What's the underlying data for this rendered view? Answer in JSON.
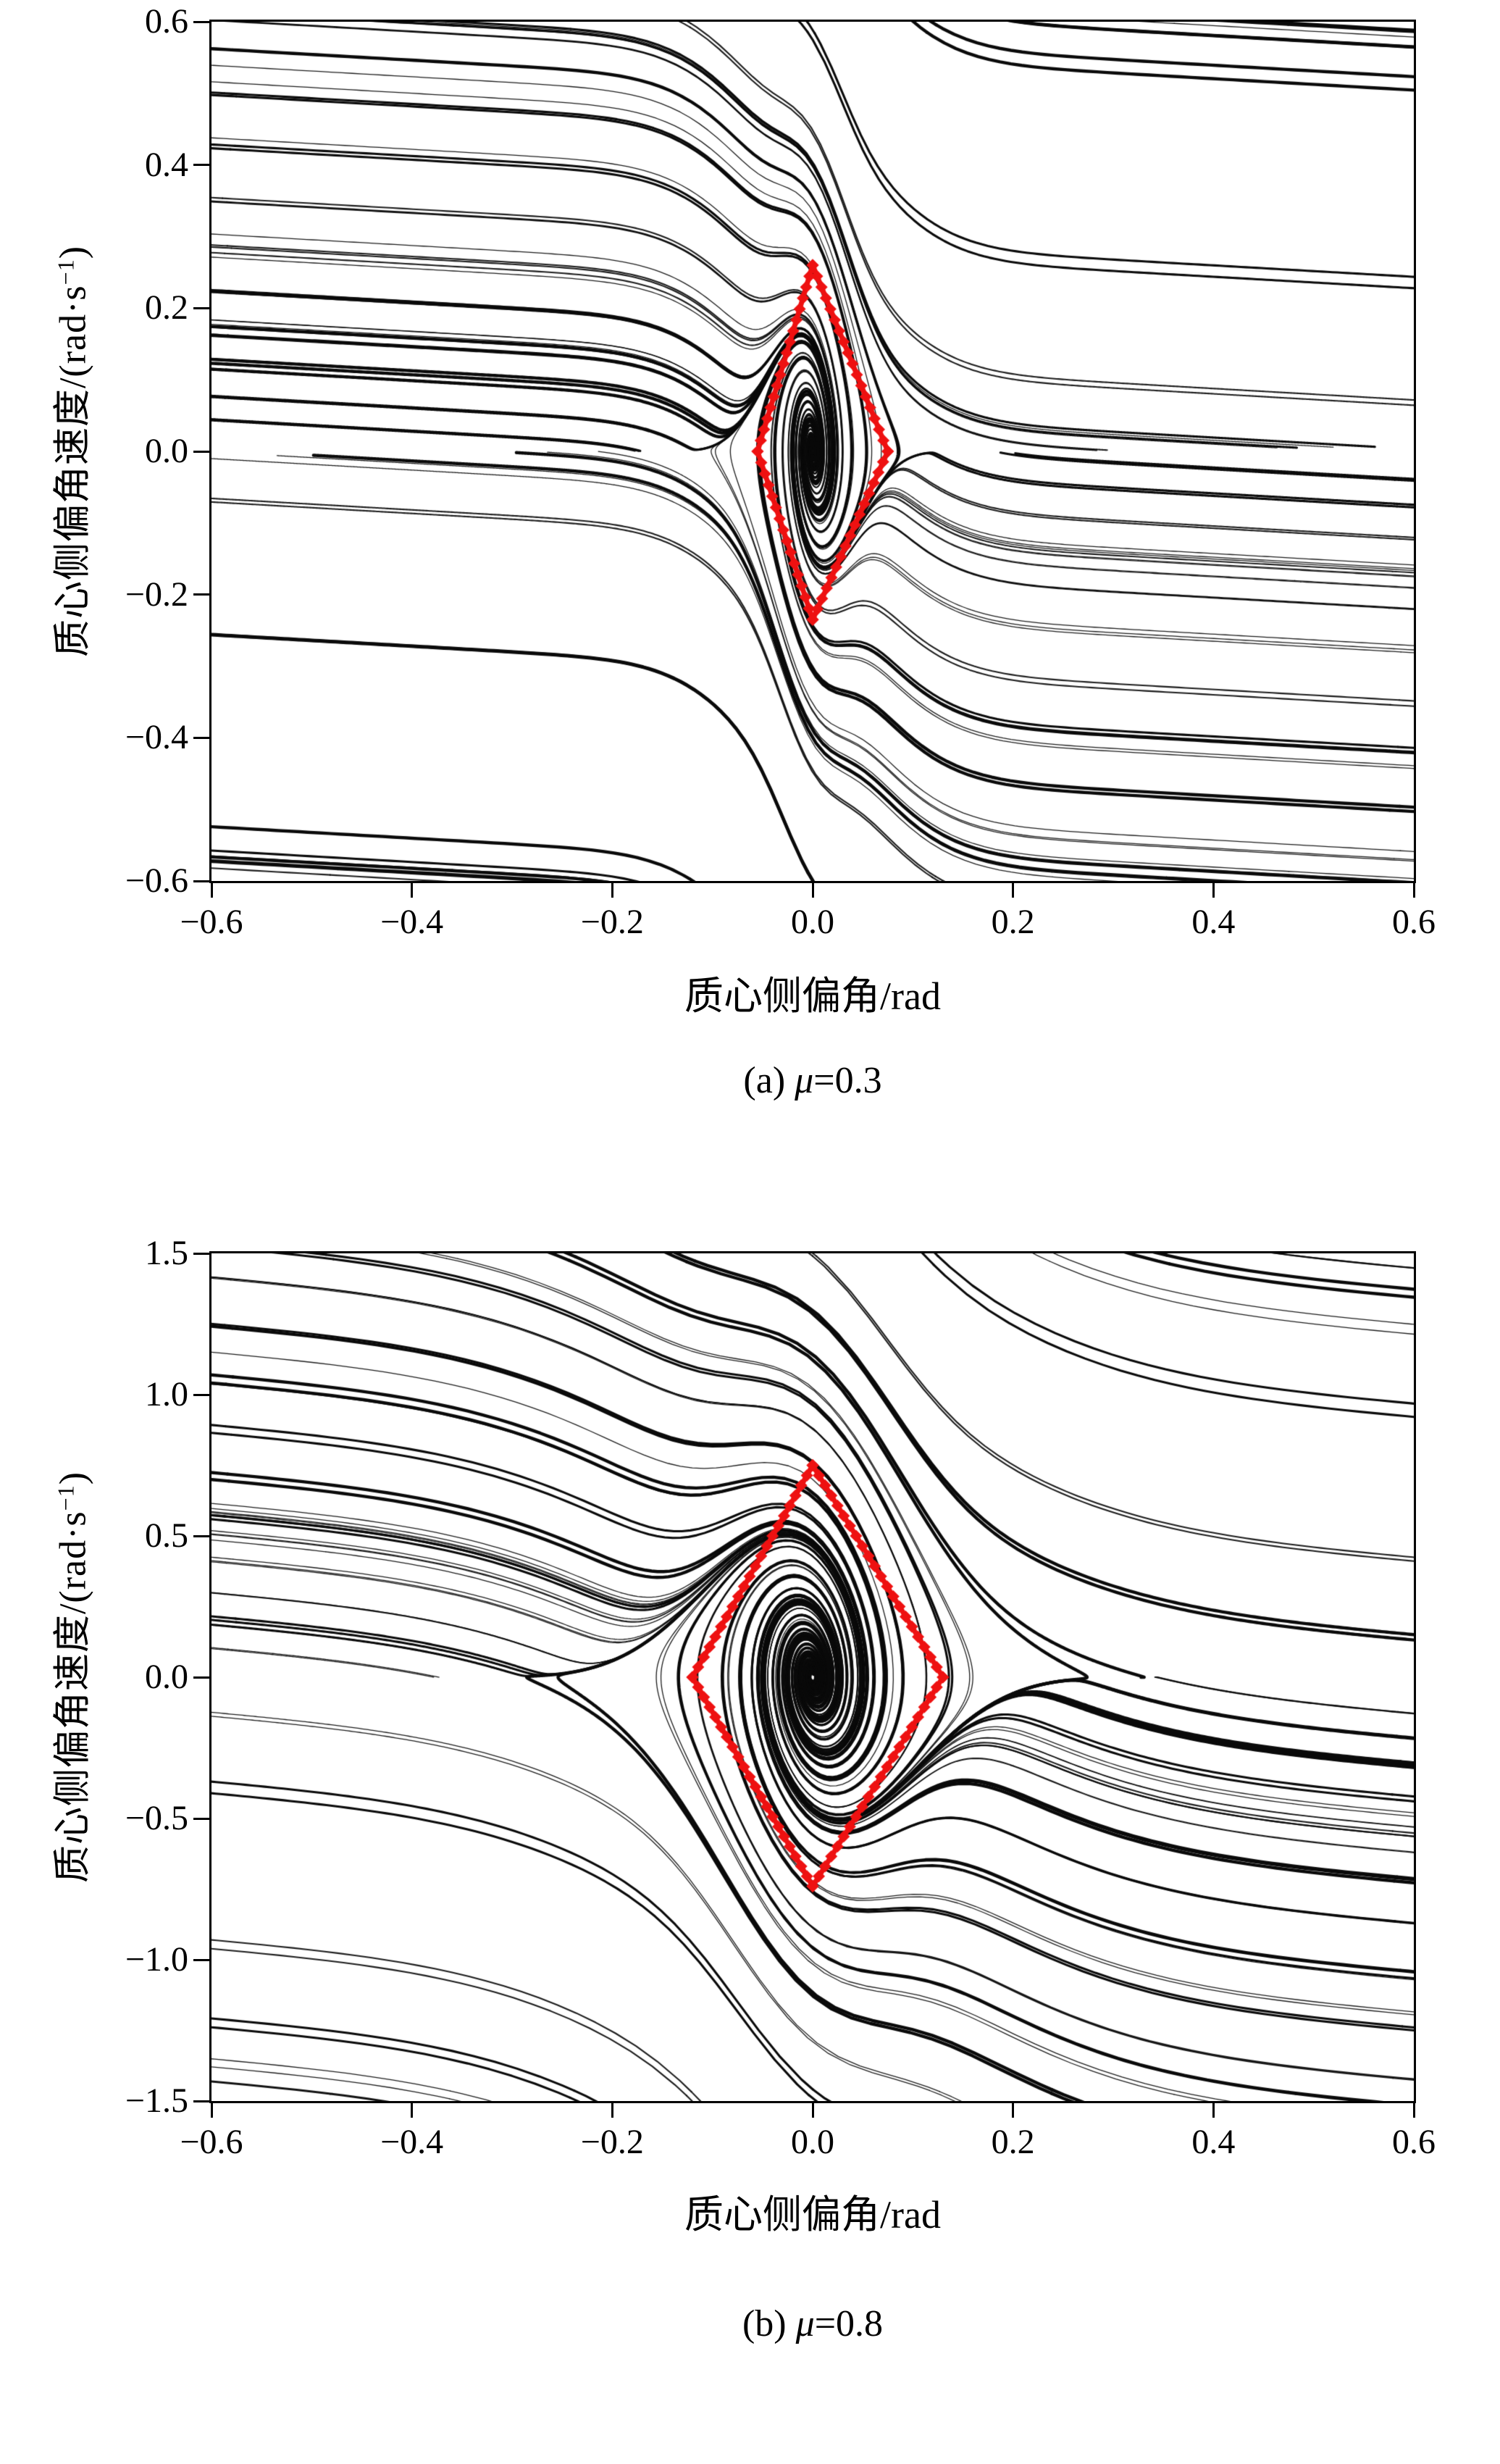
{
  "page": {
    "background": "#ffffff"
  },
  "chart_data": [
    {
      "panel": "a",
      "type": "line",
      "subtype": "phase_portrait",
      "caption": {
        "prefix": "(a) ",
        "symbol": "μ",
        "value": "=0.3"
      },
      "xlabel": "质心侧偏角/rad",
      "ylabel_main": "质心侧偏角速度/(rad·s",
      "ylabel_sup": "−1",
      "ylabel_close": ")",
      "xlim": [
        -0.6,
        0.6
      ],
      "ylim": [
        -0.6,
        0.6
      ],
      "xticks": [
        "−0.6",
        "−0.4",
        "−0.2",
        "0.0",
        "0.2",
        "0.4",
        "0.6"
      ],
      "xtick_values": [
        -0.6,
        -0.4,
        -0.2,
        0,
        0.2,
        0.4,
        0.6
      ],
      "yticks": [
        "0.6",
        "0.4",
        "0.2",
        "0.0",
        "−0.2",
        "−0.4",
        "−0.6"
      ],
      "ytick_values": [
        0.6,
        0.4,
        0.2,
        0,
        -0.2,
        -0.4,
        -0.6
      ],
      "grid": false,
      "legend": null,
      "trajectory_color": "#0a0a0a",
      "equilibrium_point": [
        0.0,
        0.0
      ],
      "stability_boundary": {
        "shape": "diamond",
        "color": "#ee1111",
        "vertices": [
          [
            0.075,
            0.0
          ],
          [
            0.0,
            0.26
          ],
          [
            -0.055,
            0.0
          ],
          [
            0.0,
            -0.235
          ]
        ]
      },
      "flow": {
        "force_width": 0.03,
        "force_gain": 0.6,
        "damping_far": 0.08,
        "damping_near": 2.2,
        "step": 0.01,
        "steps": 2400,
        "seed": 11
      }
    },
    {
      "panel": "b",
      "type": "line",
      "subtype": "phase_portrait",
      "caption": {
        "prefix": "(b) ",
        "symbol": "μ",
        "value": "=0.8"
      },
      "xlabel": "质心侧偏角/rad",
      "ylabel_main": "质心侧偏角速度/(rad·s",
      "ylabel_sup": "−1",
      "ylabel_close": ")",
      "xlim": [
        -0.6,
        0.6
      ],
      "ylim": [
        -1.5,
        1.5
      ],
      "xticks": [
        "−0.6",
        "−0.4",
        "−0.2",
        "0.0",
        "0.2",
        "0.4",
        "0.6"
      ],
      "xtick_values": [
        -0.6,
        -0.4,
        -0.2,
        0,
        0.2,
        0.4,
        0.6
      ],
      "yticks": [
        "1.5",
        "1.0",
        "0.5",
        "0.0",
        "−0.5",
        "−1.0",
        "−1.5"
      ],
      "ytick_values": [
        1.5,
        1.0,
        0.5,
        0,
        -0.5,
        -1.0,
        -1.5
      ],
      "grid": false,
      "legend": null,
      "trajectory_color": "#0a0a0a",
      "equilibrium_point": [
        0.0,
        0.0
      ],
      "stability_boundary": {
        "shape": "diamond",
        "color": "#ee1111",
        "vertices": [
          [
            0.13,
            0.0
          ],
          [
            0.0,
            0.75
          ],
          [
            -0.12,
            0.0
          ],
          [
            0.0,
            -0.74
          ]
        ]
      },
      "flow": {
        "force_width": 0.07,
        "force_gain": 2.44,
        "damping_far": 0.3,
        "damping_near": 2.6,
        "step": 0.008,
        "steps": 2200,
        "seed": 29
      }
    }
  ]
}
